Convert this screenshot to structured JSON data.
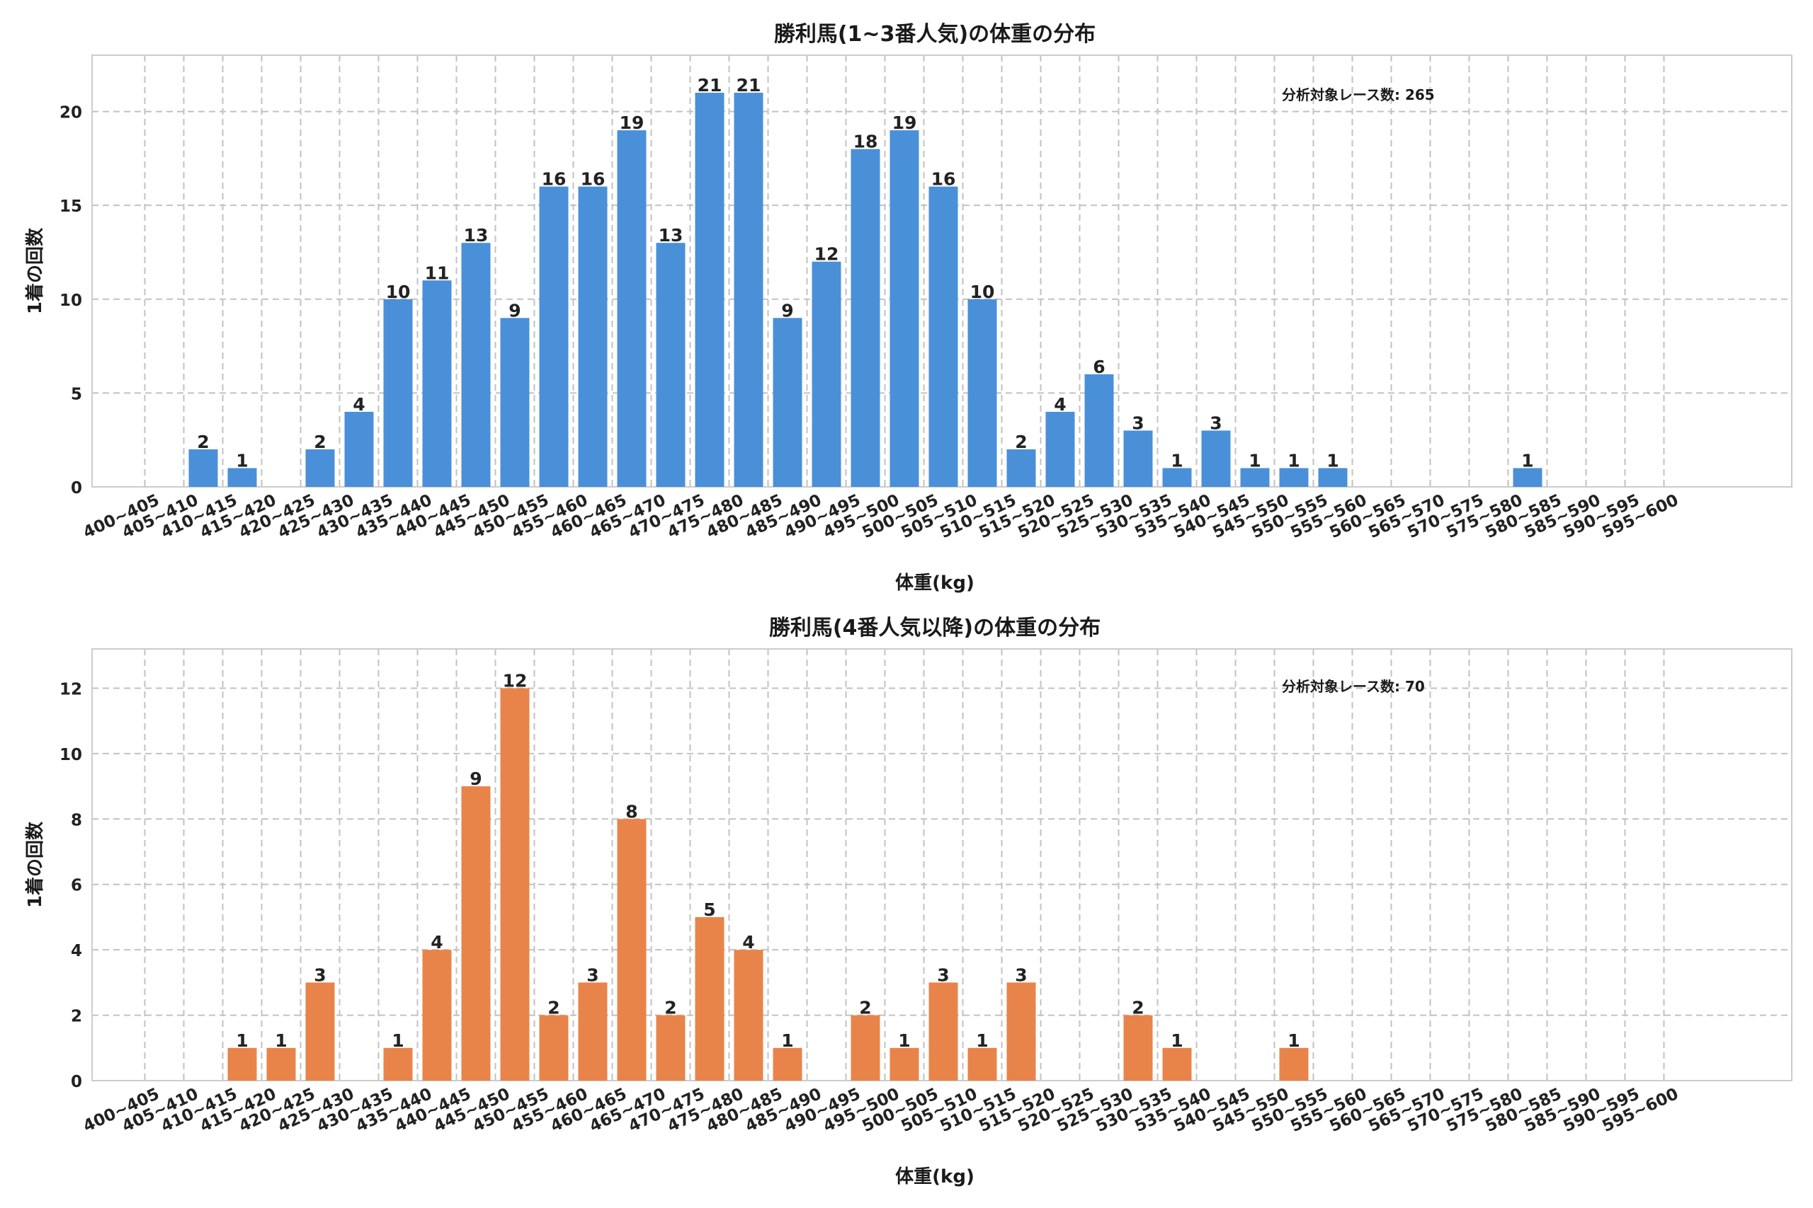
{
  "chart_data": [
    {
      "type": "bar",
      "title": "勝利馬(1~3番人気)の体重の分布",
      "xlabel": "体重(kg)",
      "ylabel": "1着の回数",
      "annotation": "分析対象レース数: 265",
      "color": "#4A90D9",
      "ylim": [
        0,
        23
      ],
      "yticks": [
        0,
        5,
        10,
        15,
        20
      ],
      "grid": true,
      "categories": [
        "400~405",
        "405~410",
        "410~415",
        "415~420",
        "420~425",
        "425~430",
        "430~435",
        "435~440",
        "440~445",
        "445~450",
        "450~455",
        "455~460",
        "460~465",
        "465~470",
        "470~475",
        "475~480",
        "480~485",
        "485~490",
        "490~495",
        "495~500",
        "500~505",
        "505~510",
        "510~515",
        "515~520",
        "520~525",
        "525~530",
        "530~535",
        "535~540",
        "540~545",
        "545~550",
        "550~555",
        "555~560",
        "560~565",
        "565~570",
        "570~575",
        "575~580",
        "580~585",
        "585~590",
        "590~595",
        "595~600"
      ],
      "values": [
        0,
        2,
        1,
        0,
        2,
        4,
        10,
        11,
        13,
        9,
        16,
        16,
        19,
        13,
        21,
        21,
        9,
        12,
        18,
        19,
        16,
        10,
        2,
        4,
        6,
        3,
        1,
        3,
        1,
        1,
        1,
        0,
        0,
        0,
        0,
        1,
        0,
        0,
        0,
        0
      ]
    },
    {
      "type": "bar",
      "title": "勝利馬(4番人気以降)の体重の分布",
      "xlabel": "体重(kg)",
      "ylabel": "1着の回数",
      "annotation": "分析対象レース数: 70",
      "color": "#E8844A",
      "ylim": [
        0,
        13.2
      ],
      "yticks": [
        0,
        2,
        4,
        6,
        8,
        10,
        12
      ],
      "grid": true,
      "categories": [
        "400~405",
        "405~410",
        "410~415",
        "415~420",
        "420~425",
        "425~430",
        "430~435",
        "435~440",
        "440~445",
        "445~450",
        "450~455",
        "455~460",
        "460~465",
        "465~470",
        "470~475",
        "475~480",
        "480~485",
        "485~490",
        "490~495",
        "495~500",
        "500~505",
        "505~510",
        "510~515",
        "515~520",
        "520~525",
        "525~530",
        "530~535",
        "535~540",
        "540~545",
        "545~550",
        "550~555",
        "555~560",
        "560~565",
        "565~570",
        "570~575",
        "575~580",
        "580~585",
        "585~590",
        "590~595",
        "595~600"
      ],
      "values": [
        0,
        0,
        1,
        1,
        3,
        0,
        1,
        4,
        9,
        12,
        2,
        3,
        8,
        2,
        5,
        4,
        1,
        0,
        2,
        1,
        3,
        1,
        3,
        0,
        0,
        2,
        1,
        0,
        0,
        1,
        0,
        0,
        0,
        0,
        0,
        0,
        0,
        0,
        0,
        0
      ]
    }
  ]
}
